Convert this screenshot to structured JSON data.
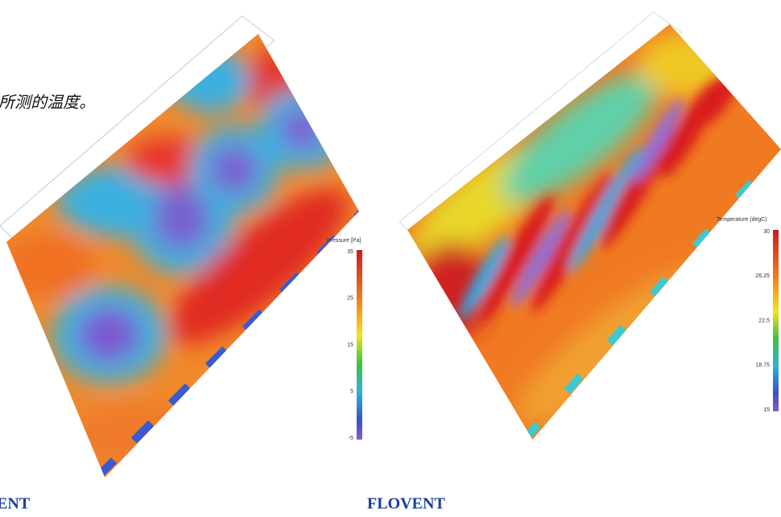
{
  "caption_fragment": "所测的温度。",
  "left_figure": {
    "label": "ENT",
    "legend": {
      "title": "Pressure [Pa]",
      "ticks": [
        "35",
        "25",
        "15",
        "5",
        "-5"
      ]
    }
  },
  "right_figure": {
    "label": "FLOVENT",
    "legend": {
      "title": "Temperature (degC)",
      "ticks": [
        "30",
        "26.25",
        "22.5",
        "18.75",
        "15"
      ]
    }
  }
}
